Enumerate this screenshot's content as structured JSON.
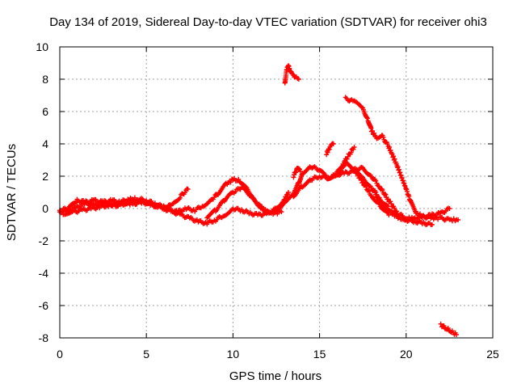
{
  "chart_data": {
    "type": "scatter",
    "title": "Day 134 of 2019, Sidereal Day-to-day VTEC variation (SDTVAR) for receiver ohi3",
    "xlabel": "GPS time / hours",
    "ylabel": "SDTVAR / TECUs",
    "xlim": [
      0,
      25
    ],
    "ylim": [
      -8,
      10
    ],
    "xticks": [
      "0",
      "5",
      "10",
      "15",
      "20",
      "25"
    ],
    "yticks": [
      "-8",
      "-6",
      "-4",
      "-2",
      "0",
      "2",
      "4",
      "6",
      "8",
      "10"
    ],
    "grid": true,
    "marker": "plus",
    "series": [
      {
        "name": "SDTVAR",
        "color": "#ff0000",
        "segments": [
          [
            [
              0.0,
              -0.2
            ],
            [
              0.5,
              -0.1
            ],
            [
              1.0,
              0.1
            ],
            [
              1.5,
              0.3
            ],
            [
              2.0,
              0.2
            ],
            [
              2.5,
              0.3
            ],
            [
              3.0,
              0.2
            ],
            [
              3.5,
              0.3
            ],
            [
              4.0,
              0.4
            ],
            [
              4.5,
              0.5
            ],
            [
              5.0,
              0.4
            ],
            [
              5.5,
              0.2
            ],
            [
              6.0,
              0.0
            ],
            [
              6.5,
              -0.2
            ],
            [
              7.0,
              -0.4
            ],
            [
              7.5,
              -0.6
            ],
            [
              8.0,
              -0.8
            ],
            [
              8.5,
              -0.9
            ],
            [
              9.0,
              -0.7
            ],
            [
              9.5,
              -0.4
            ],
            [
              10.0,
              0.0
            ],
            [
              10.5,
              -0.1
            ],
            [
              11.0,
              -0.3
            ],
            [
              11.5,
              -0.4
            ],
            [
              12.0,
              -0.3
            ],
            [
              12.5,
              -0.1
            ],
            [
              13.0,
              0.4
            ],
            [
              13.5,
              0.8
            ],
            [
              14.0,
              1.4
            ],
            [
              14.5,
              1.8
            ],
            [
              15.0,
              2.0
            ],
            [
              15.5,
              1.9
            ],
            [
              16.0,
              2.1
            ],
            [
              16.5,
              2.2
            ],
            [
              17.0,
              2.3
            ],
            [
              17.5,
              1.9
            ],
            [
              18.0,
              1.3
            ],
            [
              18.5,
              0.6
            ],
            [
              19.0,
              0.0
            ],
            [
              19.5,
              -0.4
            ],
            [
              20.0,
              -0.7
            ],
            [
              20.5,
              -0.8
            ],
            [
              21.0,
              -0.9
            ],
            [
              21.5,
              -1.0
            ]
          ],
          [
            [
              0.0,
              -0.1
            ],
            [
              0.5,
              0.0
            ],
            [
              1.0,
              0.5
            ],
            [
              1.5,
              0.4
            ],
            [
              2.0,
              0.5
            ],
            [
              2.5,
              0.4
            ],
            [
              3.0,
              0.5
            ],
            [
              3.5,
              0.4
            ],
            [
              4.0,
              0.6
            ],
            [
              4.5,
              0.6
            ],
            [
              5.0,
              0.5
            ],
            [
              5.5,
              0.3
            ],
            [
              6.0,
              0.1
            ],
            [
              6.5,
              0.2
            ],
            [
              7.0,
              0.8
            ],
            [
              7.4,
              1.2
            ]
          ],
          [
            [
              0.2,
              -0.3
            ],
            [
              0.8,
              -0.2
            ],
            [
              1.3,
              -0.1
            ],
            [
              1.8,
              0.0
            ],
            [
              2.3,
              0.1
            ],
            [
              2.8,
              0.2
            ],
            [
              3.3,
              0.2
            ],
            [
              3.8,
              0.3
            ],
            [
              4.3,
              0.3
            ],
            [
              4.8,
              0.4
            ],
            [
              5.3,
              0.2
            ],
            [
              5.8,
              0.1
            ],
            [
              6.3,
              -0.1
            ],
            [
              6.8,
              -0.2
            ],
            [
              7.3,
              0.0
            ],
            [
              7.8,
              -0.1
            ],
            [
              8.3,
              0.2
            ],
            [
              8.8,
              0.6
            ],
            [
              9.2,
              1.0
            ],
            [
              9.6,
              1.5
            ],
            [
              10.0,
              1.8
            ],
            [
              10.4,
              1.7
            ],
            [
              10.8,
              1.2
            ],
            [
              11.2,
              0.6
            ],
            [
              11.6,
              0.1
            ],
            [
              12.0,
              -0.2
            ],
            [
              12.4,
              -0.3
            ],
            [
              12.8,
              -0.2
            ]
          ],
          [
            [
              8.5,
              -0.5
            ],
            [
              9.0,
              -0.1
            ],
            [
              9.5,
              0.5
            ],
            [
              10.0,
              1.0
            ],
            [
              10.5,
              1.3
            ],
            [
              11.0,
              0.8
            ],
            [
              11.5,
              0.2
            ],
            [
              12.0,
              -0.3
            ],
            [
              12.5,
              0.0
            ],
            [
              13.0,
              0.6
            ],
            [
              13.2,
              1.0
            ]
          ],
          [
            [
              13.5,
              1.0
            ],
            [
              13.8,
              1.6
            ],
            [
              14.0,
              2.2
            ],
            [
              14.5,
              2.6
            ],
            [
              15.0,
              2.4
            ],
            [
              15.5,
              1.8
            ],
            [
              16.0,
              2.2
            ],
            [
              16.5,
              2.8
            ],
            [
              17.0,
              2.4
            ],
            [
              17.5,
              1.6
            ],
            [
              18.0,
              0.8
            ],
            [
              18.5,
              0.2
            ],
            [
              19.0,
              -0.4
            ]
          ],
          [
            [
              16.0,
              2.0
            ],
            [
              16.5,
              3.0
            ],
            [
              17.0,
              3.8
            ]
          ],
          [
            [
              13.5,
              2.0
            ],
            [
              13.7,
              2.5
            ],
            [
              13.9,
              2.3
            ]
          ],
          [
            [
              15.4,
              3.4
            ],
            [
              15.6,
              3.8
            ],
            [
              15.8,
              4.0
            ]
          ],
          [
            [
              17.0,
              2.4
            ],
            [
              17.5,
              2.5
            ],
            [
              18.0,
              2.0
            ],
            [
              18.5,
              1.3
            ],
            [
              19.0,
              0.5
            ],
            [
              19.5,
              -0.3
            ],
            [
              20.0,
              -0.6
            ],
            [
              20.5,
              -0.6
            ],
            [
              21.0,
              -0.5
            ],
            [
              21.5,
              -0.6
            ],
            [
              22.0,
              -0.6
            ],
            [
              22.5,
              -0.7
            ],
            [
              23.0,
              -0.7
            ]
          ],
          [
            [
              18.0,
              1.3
            ],
            [
              18.4,
              0.6
            ],
            [
              18.8,
              0.0
            ],
            [
              19.2,
              -0.3
            ],
            [
              19.6,
              -0.6
            ],
            [
              20.0,
              -0.7
            ]
          ],
          [
            [
              13.0,
              7.8
            ],
            [
              13.1,
              8.6
            ],
            [
              13.2,
              8.8
            ],
            [
              13.4,
              8.3
            ],
            [
              13.6,
              8.1
            ],
            [
              13.8,
              8.0
            ]
          ],
          [
            [
              16.5,
              6.8
            ],
            [
              17.0,
              6.6
            ],
            [
              17.5,
              6.2
            ],
            [
              17.8,
              5.5
            ],
            [
              18.0,
              4.8
            ],
            [
              18.3,
              4.4
            ],
            [
              18.6,
              4.5
            ],
            [
              19.0,
              3.8
            ],
            [
              19.5,
              2.6
            ],
            [
              20.0,
              1.2
            ],
            [
              20.3,
              0.3
            ],
            [
              20.6,
              -0.3
            ],
            [
              21.0,
              -0.5
            ],
            [
              21.5,
              -0.4
            ],
            [
              22.0,
              -0.3
            ],
            [
              22.5,
              0.0
            ]
          ],
          [
            [
              22.0,
              -7.2
            ],
            [
              22.3,
              -7.4
            ],
            [
              22.6,
              -7.6
            ],
            [
              22.9,
              -7.8
            ]
          ]
        ]
      }
    ]
  }
}
